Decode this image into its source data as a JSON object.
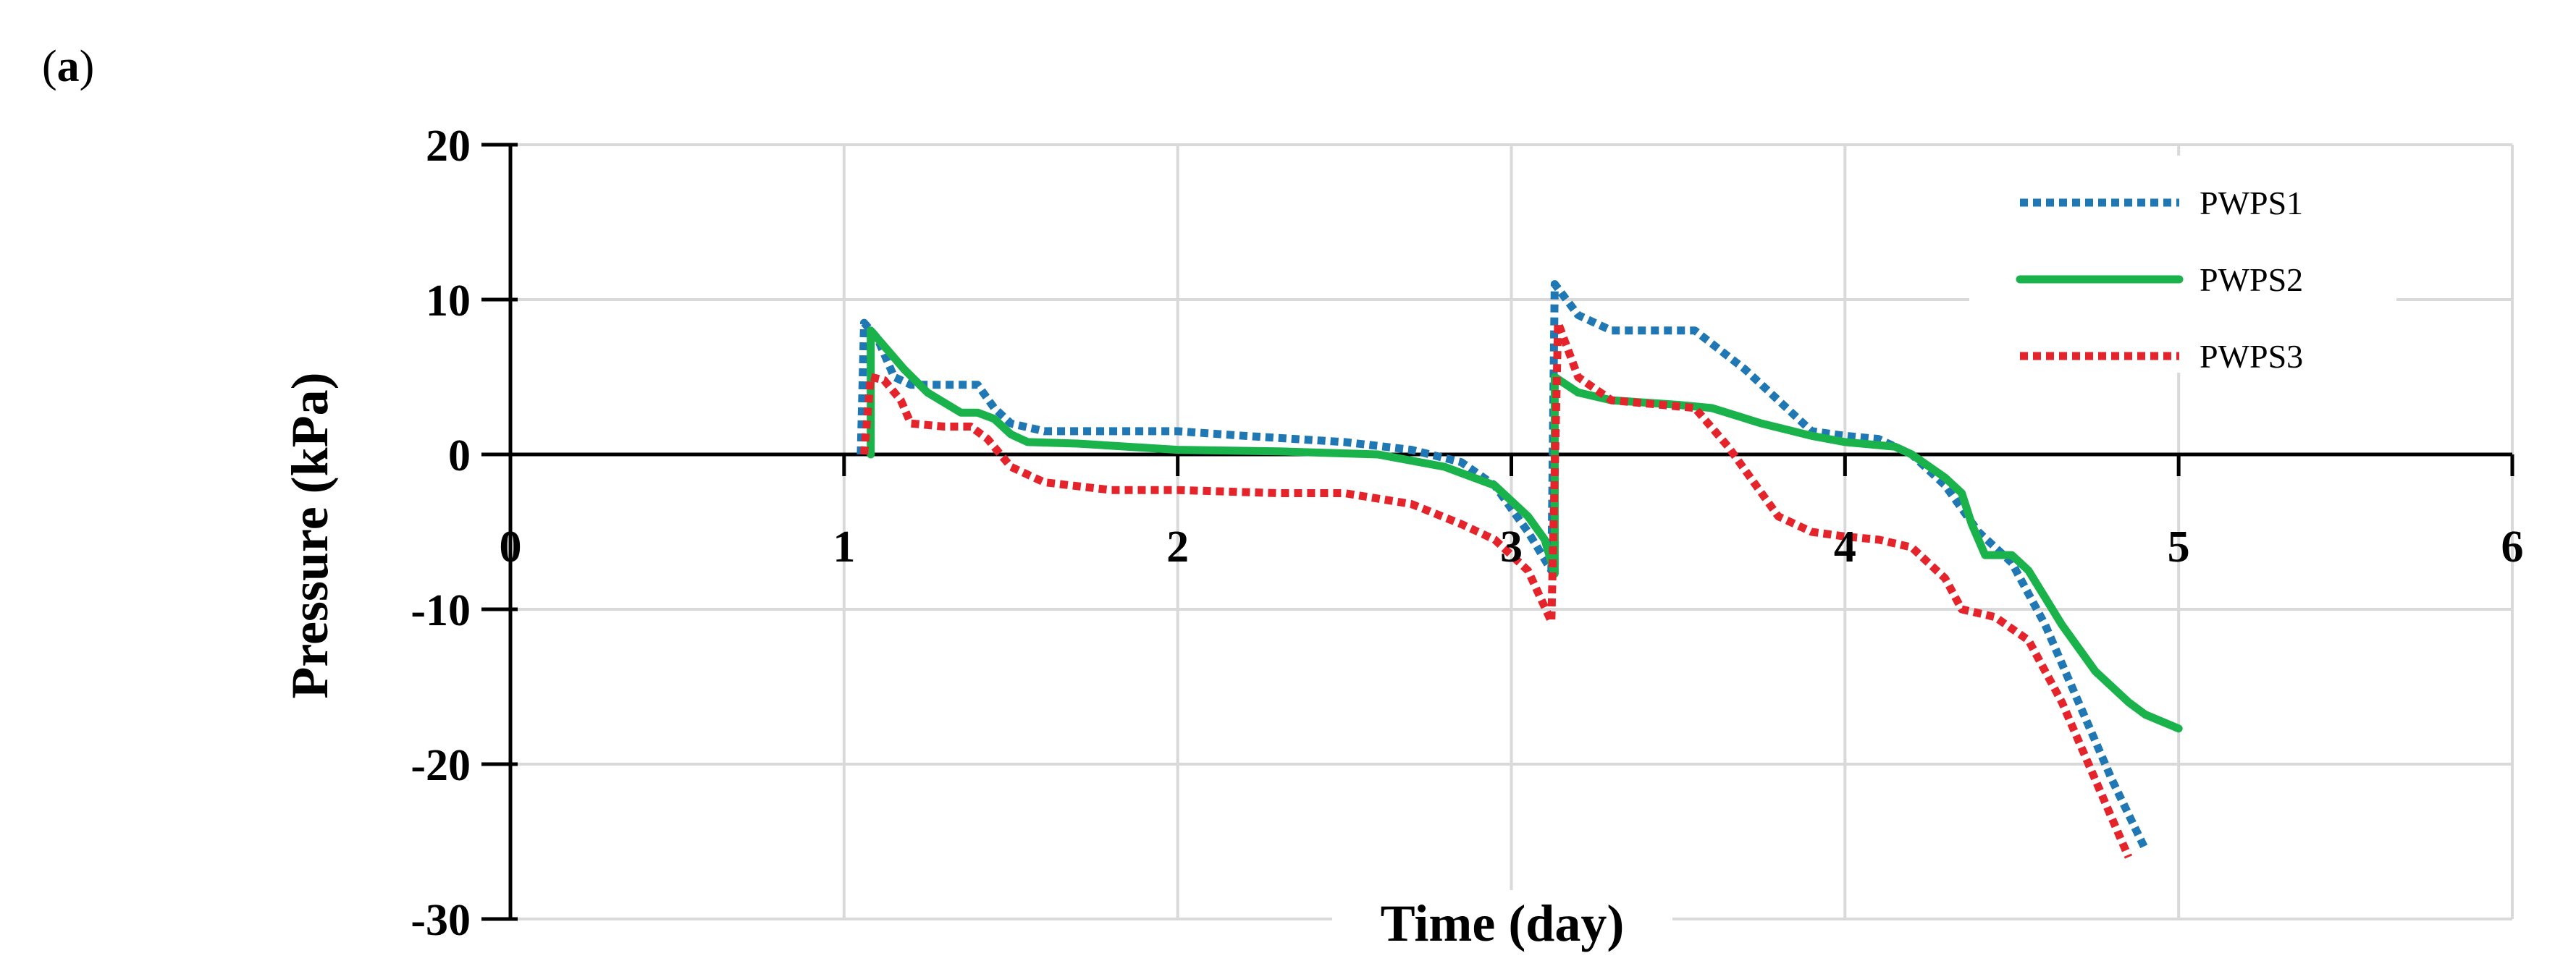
{
  "panel_label_parts": {
    "open": "(",
    "letter": "a",
    "close": ")"
  },
  "chart_data": {
    "type": "line",
    "title": "",
    "xlabel": "Time (day)",
    "ylabel": "Pressure (kPa)",
    "xlim": [
      0,
      6
    ],
    "ylim": [
      -30,
      20
    ],
    "xticks": [
      "0",
      "1",
      "2",
      "3",
      "4",
      "5",
      "6"
    ],
    "yticks": [
      "20",
      "10",
      "0",
      "-10",
      "-20",
      "-30"
    ],
    "grid": true,
    "legend_position": "top-right",
    "series": [
      {
        "name": "PWPS1",
        "color": "#1F77B4",
        "style": "dotted",
        "points": [
          [
            1.05,
            0
          ],
          [
            1.06,
            8.5
          ],
          [
            1.1,
            7.5
          ],
          [
            1.15,
            5
          ],
          [
            1.2,
            4.5
          ],
          [
            1.3,
            4.5
          ],
          [
            1.4,
            4.5
          ],
          [
            1.45,
            3
          ],
          [
            1.5,
            2
          ],
          [
            1.6,
            1.5
          ],
          [
            1.8,
            1.5
          ],
          [
            2.0,
            1.5
          ],
          [
            2.2,
            1.2
          ],
          [
            2.5,
            0.8
          ],
          [
            2.7,
            0.3
          ],
          [
            2.85,
            -0.5
          ],
          [
            2.95,
            -2
          ],
          [
            3.05,
            -5
          ],
          [
            3.12,
            -7.5
          ],
          [
            3.13,
            11
          ],
          [
            3.2,
            9
          ],
          [
            3.3,
            8
          ],
          [
            3.45,
            8
          ],
          [
            3.55,
            8
          ],
          [
            3.7,
            5.5
          ],
          [
            3.8,
            3.5
          ],
          [
            3.9,
            1.5
          ],
          [
            4.0,
            1.2
          ],
          [
            4.1,
            1
          ],
          [
            4.2,
            0
          ],
          [
            4.3,
            -2
          ],
          [
            4.4,
            -5
          ],
          [
            4.5,
            -7
          ],
          [
            4.6,
            -11
          ],
          [
            4.7,
            -16
          ],
          [
            4.8,
            -21
          ],
          [
            4.9,
            -25.5
          ]
        ]
      },
      {
        "name": "PWPS2",
        "color": "#1AB24A",
        "style": "solid",
        "points": [
          [
            1.08,
            0
          ],
          [
            1.08,
            8
          ],
          [
            1.12,
            7
          ],
          [
            1.18,
            5.5
          ],
          [
            1.25,
            4
          ],
          [
            1.35,
            2.7
          ],
          [
            1.4,
            2.7
          ],
          [
            1.45,
            2.3
          ],
          [
            1.5,
            1.3
          ],
          [
            1.55,
            0.8
          ],
          [
            1.7,
            0.7
          ],
          [
            2.0,
            0.3
          ],
          [
            2.3,
            0.2
          ],
          [
            2.6,
            0
          ],
          [
            2.8,
            -0.8
          ],
          [
            2.95,
            -2
          ],
          [
            3.05,
            -4
          ],
          [
            3.1,
            -5.5
          ],
          [
            3.13,
            -7.7
          ],
          [
            3.13,
            5
          ],
          [
            3.2,
            4
          ],
          [
            3.3,
            3.5
          ],
          [
            3.5,
            3.2
          ],
          [
            3.6,
            3
          ],
          [
            3.75,
            2
          ],
          [
            3.9,
            1.2
          ],
          [
            4.0,
            0.8
          ],
          [
            4.15,
            0.5
          ],
          [
            4.2,
            0
          ],
          [
            4.3,
            -1.5
          ],
          [
            4.35,
            -2.5
          ],
          [
            4.38,
            -4.5
          ],
          [
            4.42,
            -6.5
          ],
          [
            4.5,
            -6.5
          ],
          [
            4.55,
            -7.5
          ],
          [
            4.65,
            -11
          ],
          [
            4.75,
            -14
          ],
          [
            4.85,
            -16
          ],
          [
            4.9,
            -16.8
          ],
          [
            5.0,
            -17.7
          ]
        ]
      },
      {
        "name": "PWPS3",
        "color": "#E5232A",
        "style": "dotted",
        "points": [
          [
            1.06,
            0
          ],
          [
            1.08,
            5
          ],
          [
            1.12,
            4.8
          ],
          [
            1.17,
            3.5
          ],
          [
            1.2,
            2
          ],
          [
            1.3,
            1.8
          ],
          [
            1.38,
            1.8
          ],
          [
            1.43,
            1
          ],
          [
            1.5,
            -0.8
          ],
          [
            1.6,
            -1.8
          ],
          [
            1.8,
            -2.3
          ],
          [
            2.0,
            -2.3
          ],
          [
            2.3,
            -2.5
          ],
          [
            2.5,
            -2.5
          ],
          [
            2.7,
            -3.2
          ],
          [
            2.85,
            -4.5
          ],
          [
            2.95,
            -5.5
          ],
          [
            3.05,
            -7.5
          ],
          [
            3.12,
            -10.8
          ],
          [
            3.14,
            8.5
          ],
          [
            3.2,
            5
          ],
          [
            3.3,
            3.5
          ],
          [
            3.45,
            3.2
          ],
          [
            3.55,
            3
          ],
          [
            3.65,
            0.5
          ],
          [
            3.8,
            -4
          ],
          [
            3.9,
            -5
          ],
          [
            4.0,
            -5.3
          ],
          [
            4.1,
            -5.5
          ],
          [
            4.2,
            -6
          ],
          [
            4.3,
            -8
          ],
          [
            4.35,
            -10
          ],
          [
            4.45,
            -10.5
          ],
          [
            4.55,
            -12
          ],
          [
            4.65,
            -16
          ],
          [
            4.75,
            -21
          ],
          [
            4.85,
            -26
          ]
        ]
      }
    ]
  }
}
